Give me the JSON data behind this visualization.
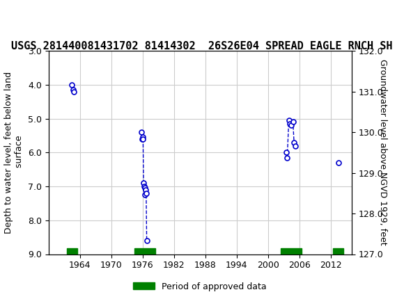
{
  "title": "USGS 281440081431702 81414302  26S26E04 SPREAD EAGLE RNCH SH",
  "ylabel_left": "Depth to water level, feet below land\n surface",
  "ylabel_right": "Groundwater level above NGVD 1929, feet",
  "xlabel": "",
  "ylim_left": [
    9.0,
    3.0
  ],
  "ylim_right": [
    127.0,
    132.0
  ],
  "xlim": [
    1958,
    2016
  ],
  "xticks": [
    1964,
    1970,
    1976,
    1982,
    1988,
    1994,
    2000,
    2006,
    2012
  ],
  "yticks_left": [
    3.0,
    4.0,
    5.0,
    6.0,
    7.0,
    8.0,
    9.0
  ],
  "yticks_right": [
    127.0,
    128.0,
    129.0,
    130.0,
    131.0,
    132.0
  ],
  "data_points": [
    {
      "year": 1962.5,
      "depth": 4.0
    },
    {
      "year": 1962.7,
      "depth": 4.15
    },
    {
      "year": 1962.8,
      "depth": 4.2
    },
    {
      "year": 1975.8,
      "depth": 5.4
    },
    {
      "year": 1975.9,
      "depth": 5.6
    },
    {
      "year": 1976.0,
      "depth": 5.55
    },
    {
      "year": 1976.1,
      "depth": 5.6
    },
    {
      "year": 1976.2,
      "depth": 6.9
    },
    {
      "year": 1976.3,
      "depth": 7.0
    },
    {
      "year": 1976.4,
      "depth": 7.05
    },
    {
      "year": 1976.5,
      "depth": 7.25
    },
    {
      "year": 1976.6,
      "depth": 7.1
    },
    {
      "year": 1976.7,
      "depth": 7.2
    },
    {
      "year": 1976.8,
      "depth": 8.6
    },
    {
      "year": 2003.5,
      "depth": 6.0
    },
    {
      "year": 2003.7,
      "depth": 6.15
    },
    {
      "year": 2004.0,
      "depth": 5.05
    },
    {
      "year": 2004.2,
      "depth": 5.15
    },
    {
      "year": 2004.5,
      "depth": 5.2
    },
    {
      "year": 2004.8,
      "depth": 5.1
    },
    {
      "year": 2005.0,
      "depth": 5.7
    },
    {
      "year": 2005.2,
      "depth": 5.8
    },
    {
      "year": 2013.5,
      "depth": 6.3
    }
  ],
  "groups": [
    {
      "years": [
        1962.5,
        1962.7,
        1962.8
      ],
      "depths": [
        4.0,
        4.15,
        4.2
      ]
    },
    {
      "years": [
        1975.8,
        1975.9,
        1976.0,
        1976.1,
        1976.2,
        1976.3,
        1976.4,
        1976.5,
        1976.6,
        1976.7,
        1976.8
      ],
      "depths": [
        5.4,
        5.6,
        5.55,
        5.6,
        6.9,
        7.0,
        7.05,
        7.25,
        7.1,
        7.2,
        8.6
      ]
    },
    {
      "years": [
        2003.5,
        2003.7,
        2004.0,
        2004.2,
        2004.5,
        2004.8,
        2005.0,
        2005.2
      ],
      "depths": [
        6.0,
        6.15,
        5.05,
        5.15,
        5.2,
        5.1,
        5.7,
        5.8
      ]
    },
    {
      "years": [
        2013.5
      ],
      "depths": [
        6.3
      ]
    }
  ],
  "approved_bars": [
    {
      "x_start": 1961.5,
      "x_end": 1963.5
    },
    {
      "x_start": 1974.5,
      "x_end": 1978.5
    },
    {
      "x_start": 2002.5,
      "x_end": 2006.5
    },
    {
      "x_start": 2012.5,
      "x_end": 2014.5
    }
  ],
  "point_color": "#0000CC",
  "line_color": "#0000CC",
  "bar_color": "#008000",
  "bar_y": 9.0,
  "bar_height": 0.18,
  "background_color": "#ffffff",
  "grid_color": "#cccccc",
  "header_color": "#006633",
  "usgs_logo_color": "#006633",
  "title_fontsize": 11,
  "axis_label_fontsize": 9,
  "tick_fontsize": 9
}
